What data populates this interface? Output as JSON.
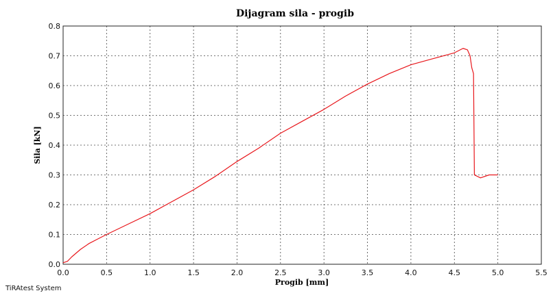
{
  "chart_data": {
    "type": "line",
    "title": "Dijagram sila - progib",
    "xlabel": "Progib [mm]",
    "ylabel": "Sila [kN]",
    "xlim": [
      0,
      5.5
    ],
    "ylim": [
      0,
      0.8
    ],
    "grid": true,
    "x_ticks": [
      "0.0",
      "0.5",
      "1.0",
      "1.5",
      "2.0",
      "2.5",
      "3.0",
      "3.5",
      "4.0",
      "4.5",
      "5.0",
      "5.5"
    ],
    "y_ticks": [
      "0.0",
      "0.1",
      "0.2",
      "0.3",
      "0.4",
      "0.5",
      "0.6",
      "0.7",
      "0.8"
    ],
    "series": [
      {
        "color": "#e8161b",
        "x": [
          0.0,
          0.05,
          0.1,
          0.2,
          0.3,
          0.4,
          0.5,
          0.75,
          1.0,
          1.25,
          1.5,
          1.75,
          2.0,
          2.25,
          2.5,
          2.75,
          3.0,
          3.25,
          3.5,
          3.75,
          4.0,
          4.25,
          4.5,
          4.6,
          4.65,
          4.68,
          4.7,
          4.72,
          4.73,
          4.8,
          4.9,
          5.0
        ],
        "y": [
          0.005,
          0.01,
          0.025,
          0.05,
          0.07,
          0.085,
          0.1,
          0.135,
          0.17,
          0.21,
          0.25,
          0.295,
          0.345,
          0.39,
          0.44,
          0.48,
          0.52,
          0.565,
          0.605,
          0.64,
          0.67,
          0.69,
          0.71,
          0.725,
          0.72,
          0.7,
          0.66,
          0.64,
          0.3,
          0.29,
          0.3,
          0.3
        ]
      }
    ]
  },
  "footer_text": "TiRAtest System"
}
